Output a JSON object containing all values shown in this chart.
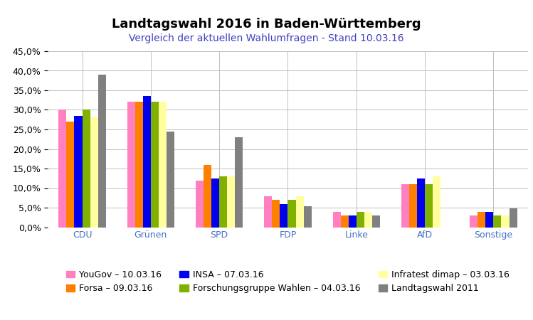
{
  "title": "Landtagswahl 2016 in Baden-Württemberg",
  "subtitle": "Vergleich der aktuellen Wahlumfragen - Stand 10.03.16",
  "categories": [
    "CDU",
    "Grünen",
    "SPD",
    "FDP",
    "Linke",
    "AfD",
    "Sonstige"
  ],
  "series": [
    {
      "name": "YouGov – 10.03.16",
      "color": "#FF80C0",
      "values": [
        30.0,
        32.0,
        12.0,
        8.0,
        4.0,
        11.0,
        3.0
      ]
    },
    {
      "name": "Forsa – 09.03.16",
      "color": "#FF8000",
      "values": [
        27.0,
        32.0,
        16.0,
        7.0,
        3.0,
        11.0,
        4.0
      ]
    },
    {
      "name": "INSA – 07.03.16",
      "color": "#0000EE",
      "values": [
        28.5,
        33.5,
        12.5,
        6.0,
        3.0,
        12.5,
        4.0
      ]
    },
    {
      "name": "Forschungsgruppe Wahlen – 04.03.16",
      "color": "#80B000",
      "values": [
        30.0,
        32.0,
        13.0,
        7.0,
        4.0,
        11.0,
        3.0
      ]
    },
    {
      "name": "Infratest dimap – 03.03.16",
      "color": "#FFFFA0",
      "values": [
        28.0,
        32.0,
        13.0,
        8.0,
        4.0,
        13.0,
        3.0
      ]
    },
    {
      "name": "Landtagswahl 2011",
      "color": "#808080",
      "values": [
        39.0,
        24.5,
        23.0,
        5.3,
        3.0,
        0.0,
        4.8
      ]
    }
  ],
  "ylim": [
    0,
    45
  ],
  "yticks": [
    0,
    5,
    10,
    15,
    20,
    25,
    30,
    35,
    40,
    45
  ],
  "background_color": "#FFFFFF",
  "grid_color": "#C0C0C0",
  "title_fontsize": 13,
  "subtitle_fontsize": 10,
  "legend_fontsize": 9,
  "axis_fontsize": 9,
  "bar_width": 0.115
}
